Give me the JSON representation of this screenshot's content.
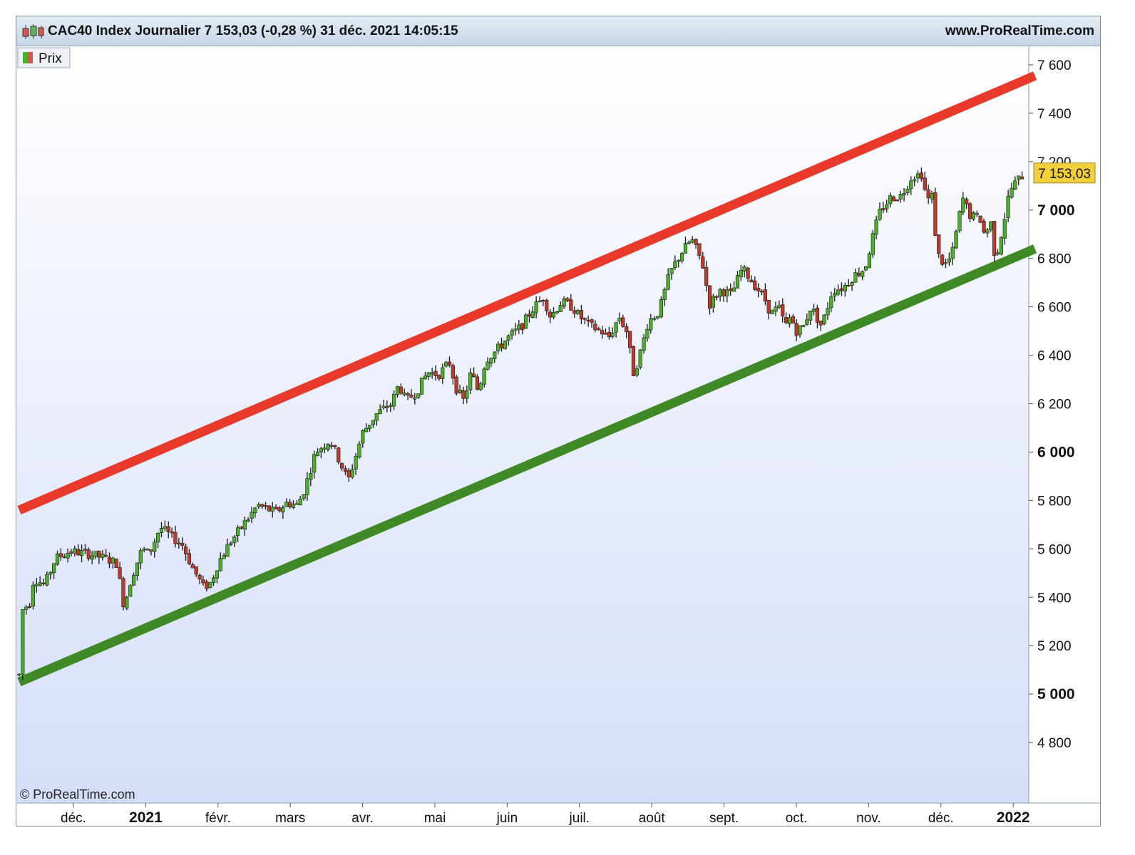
{
  "header": {
    "title": "CAC40 Index Journalier 7 153,03 (-0,28 %) 31 déc. 2021 14:05:15",
    "site": "www.ProRealTime.com"
  },
  "legend": {
    "label": "Prix"
  },
  "watermark": "© ProRealTime.com",
  "last_price_label": "7 153,03",
  "colors": {
    "up": "#4caf2a",
    "down": "#c0392b",
    "resistance": "#e8392b",
    "support": "#3f8a26",
    "price_tag": "#f2d03b"
  },
  "chart_data": {
    "type": "candlestick",
    "instrument": "CAC40 Index",
    "timeframe": "Journalier",
    "ylim": [
      4600,
      7650
    ],
    "y_ticks": [
      {
        "value": 4800,
        "label": "4 800",
        "bold": false
      },
      {
        "value": 5000,
        "label": "5 000",
        "bold": true
      },
      {
        "value": 5200,
        "label": "5 200",
        "bold": false
      },
      {
        "value": 5400,
        "label": "5 400",
        "bold": false
      },
      {
        "value": 5600,
        "label": "5 600",
        "bold": false
      },
      {
        "value": 5800,
        "label": "5 800",
        "bold": false
      },
      {
        "value": 6000,
        "label": "6 000",
        "bold": true
      },
      {
        "value": 6200,
        "label": "6 200",
        "bold": false
      },
      {
        "value": 6400,
        "label": "6 400",
        "bold": false
      },
      {
        "value": 6600,
        "label": "6 600",
        "bold": false
      },
      {
        "value": 6800,
        "label": "6 800",
        "bold": false
      },
      {
        "value": 7000,
        "label": "7 000",
        "bold": true
      },
      {
        "value": 7200,
        "label": "7 200",
        "bold": false
      },
      {
        "value": 7400,
        "label": "7 400",
        "bold": false
      },
      {
        "value": 7600,
        "label": "7 600",
        "bold": false
      }
    ],
    "x_ticks": [
      {
        "month": 0,
        "label": "déc.",
        "bold": false
      },
      {
        "month": 1,
        "label": "2021",
        "bold": true
      },
      {
        "month": 2,
        "label": "févr.",
        "bold": false
      },
      {
        "month": 3,
        "label": "mars",
        "bold": false
      },
      {
        "month": 4,
        "label": "avr.",
        "bold": false
      },
      {
        "month": 5,
        "label": "mai",
        "bold": false
      },
      {
        "month": 6,
        "label": "juin",
        "bold": false
      },
      {
        "month": 7,
        "label": "juil.",
        "bold": false
      },
      {
        "month": 8,
        "label": "août",
        "bold": false
      },
      {
        "month": 9,
        "label": "sept.",
        "bold": false
      },
      {
        "month": 10,
        "label": "oct.",
        "bold": false
      },
      {
        "month": 11,
        "label": "nov.",
        "bold": false
      },
      {
        "month": 12,
        "label": "déc.",
        "bold": false
      },
      {
        "month": 13,
        "label": "2022",
        "bold": true
      }
    ],
    "trend_lines": [
      {
        "name": "resistance",
        "color": "#e8392b",
        "start": {
          "month": -0.75,
          "value": 5760
        },
        "end": {
          "month": 13.3,
          "value": 7555
        }
      },
      {
        "name": "support",
        "color": "#3f8a26",
        "start": {
          "month": -0.75,
          "value": 5050
        },
        "end": {
          "month": 13.3,
          "value": 6840
        }
      }
    ],
    "anchors": [
      [
        -0.75,
        5080
      ],
      [
        -0.73,
        5340
      ],
      [
        -0.6,
        5380
      ],
      [
        -0.55,
        5480
      ],
      [
        -0.4,
        5450
      ],
      [
        -0.25,
        5560
      ],
      [
        -0.05,
        5590
      ],
      [
        0.2,
        5580
      ],
      [
        0.45,
        5560
      ],
      [
        0.6,
        5540
      ],
      [
        0.7,
        5360
      ],
      [
        0.8,
        5480
      ],
      [
        0.95,
        5600
      ],
      [
        1.05,
        5580
      ],
      [
        1.2,
        5690
      ],
      [
        1.4,
        5640
      ],
      [
        1.5,
        5620
      ],
      [
        1.65,
        5520
      ],
      [
        1.8,
        5440
      ],
      [
        1.9,
        5460
      ],
      [
        2.0,
        5540
      ],
      [
        2.15,
        5620
      ],
      [
        2.35,
        5700
      ],
      [
        2.55,
        5780
      ],
      [
        2.8,
        5750
      ],
      [
        2.95,
        5790
      ],
      [
        3.1,
        5780
      ],
      [
        3.2,
        5850
      ],
      [
        3.35,
        6000
      ],
      [
        3.55,
        6050
      ],
      [
        3.7,
        5950
      ],
      [
        3.8,
        5880
      ],
      [
        3.9,
        5980
      ],
      [
        4.0,
        6080
      ],
      [
        4.2,
        6160
      ],
      [
        4.4,
        6200
      ],
      [
        4.5,
        6280
      ],
      [
        4.6,
        6210
      ],
      [
        4.75,
        6250
      ],
      [
        4.9,
        6330
      ],
      [
        5.05,
        6320
      ],
      [
        5.2,
        6370
      ],
      [
        5.3,
        6260
      ],
      [
        5.4,
        6210
      ],
      [
        5.5,
        6330
      ],
      [
        5.6,
        6250
      ],
      [
        5.7,
        6380
      ],
      [
        5.85,
        6420
      ],
      [
        6.0,
        6470
      ],
      [
        6.2,
        6520
      ],
      [
        6.35,
        6590
      ],
      [
        6.5,
        6640
      ],
      [
        6.6,
        6560
      ],
      [
        6.75,
        6620
      ],
      [
        6.9,
        6600
      ],
      [
        7.0,
        6560
      ],
      [
        7.15,
        6520
      ],
      [
        7.3,
        6500
      ],
      [
        7.4,
        6470
      ],
      [
        7.55,
        6560
      ],
      [
        7.65,
        6500
      ],
      [
        7.75,
        6320
      ],
      [
        7.85,
        6420
      ],
      [
        7.95,
        6540
      ],
      [
        8.1,
        6580
      ],
      [
        8.25,
        6740
      ],
      [
        8.4,
        6820
      ],
      [
        8.55,
        6880
      ],
      [
        8.7,
        6780
      ],
      [
        8.8,
        6610
      ],
      [
        8.95,
        6670
      ],
      [
        9.1,
        6650
      ],
      [
        9.25,
        6760
      ],
      [
        9.4,
        6700
      ],
      [
        9.55,
        6640
      ],
      [
        9.65,
        6570
      ],
      [
        9.75,
        6600
      ],
      [
        9.85,
        6520
      ],
      [
        9.92,
        6560
      ],
      [
        10.0,
        6500
      ],
      [
        10.1,
        6520
      ],
      [
        10.2,
        6600
      ],
      [
        10.35,
        6520
      ],
      [
        10.5,
        6670
      ],
      [
        10.65,
        6680
      ],
      [
        10.8,
        6730
      ],
      [
        10.95,
        6760
      ],
      [
        11.05,
        6880
      ],
      [
        11.15,
        6990
      ],
      [
        11.3,
        7050
      ],
      [
        11.45,
        7060
      ],
      [
        11.6,
        7140
      ],
      [
        11.75,
        7150
      ],
      [
        11.8,
        7030
      ],
      [
        11.87,
        7070
      ],
      [
        11.95,
        6820
      ],
      [
        12.05,
        6770
      ],
      [
        12.15,
        6810
      ],
      [
        12.3,
        7050
      ],
      [
        12.4,
        6980
      ],
      [
        12.55,
        6960
      ],
      [
        12.6,
        6900
      ],
      [
        12.7,
        6950
      ],
      [
        12.75,
        6790
      ],
      [
        12.85,
        6920
      ],
      [
        12.95,
        7080
      ],
      [
        13.05,
        7120
      ],
      [
        13.15,
        7150
      ]
    ]
  }
}
